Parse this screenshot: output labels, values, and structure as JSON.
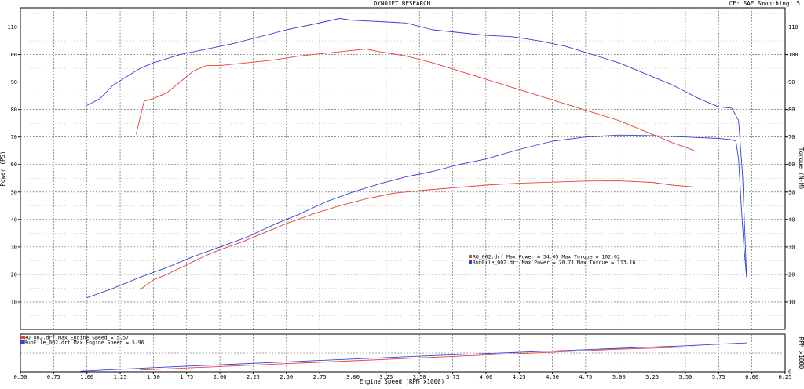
{
  "header": {
    "title": "DYNOJET RESEARCH",
    "settings": "CF: SAE  Smoothing: 5"
  },
  "chart_data": [
    {
      "type": "line",
      "title": "DYNOJET RESEARCH",
      "xlabel": "Engine Speed (RPM x1000)",
      "ylabel_left": "Power (PS)",
      "ylabel_right": "Torque (N-M)",
      "xlim": [
        0.5,
        6.25
      ],
      "ylim": [
        0,
        117
      ],
      "x_ticks": [
        "0.50",
        "0.75",
        "1.00",
        "1.25",
        "1.50",
        "1.75",
        "2.00",
        "2.25",
        "2.50",
        "2.75",
        "3.00",
        "3.25",
        "3.50",
        "3.75",
        "4.00",
        "4.25",
        "4.50",
        "4.75",
        "5.00",
        "5.25",
        "5.50",
        "5.75",
        "6.00",
        "6.25"
      ],
      "y_ticks": [
        "10",
        "20",
        "30",
        "40",
        "50",
        "60",
        "70",
        "80",
        "90",
        "100",
        "110"
      ],
      "grid": true,
      "legend_position": "center-right",
      "legend": [
        {
          "color": "#e8413a",
          "text": "RO_002.drf Max Power = 54.05      Max Torque = 102.02"
        },
        {
          "color": "#3340d8",
          "text": "RunFile_002.drf Max Power = 70.71      Max Torque = 113.16"
        }
      ],
      "series": [
        {
          "name": "RO_002.drf Power",
          "color": "#e8413a",
          "x": [
            1.4,
            1.5,
            1.6,
            1.75,
            1.9,
            2.0,
            2.15,
            2.3,
            2.5,
            2.7,
            2.9,
            3.1,
            3.3,
            3.5,
            3.75,
            4.0,
            4.25,
            4.5,
            4.75,
            5.0,
            5.25,
            5.4,
            5.57
          ],
          "y": [
            14.5,
            18,
            20,
            23.5,
            27,
            29,
            31.5,
            34.5,
            38.5,
            42,
            45,
            47.5,
            49.5,
            50.5,
            51.5,
            52.5,
            53.2,
            53.6,
            54,
            54.05,
            53.5,
            52.5,
            51.8
          ]
        },
        {
          "name": "RO_002.drf Torque",
          "color": "#e8413a",
          "x": [
            1.37,
            1.43,
            1.5,
            1.6,
            1.7,
            1.8,
            1.9,
            2.0,
            2.2,
            2.4,
            2.6,
            2.8,
            3.0,
            3.1,
            3.2,
            3.4,
            3.6,
            3.8,
            4.0,
            4.2,
            4.4,
            4.6,
            4.8,
            5.0,
            5.2,
            5.4,
            5.57
          ],
          "y": [
            71,
            83,
            84,
            86,
            90,
            94,
            96,
            96,
            97,
            98,
            99.5,
            100.5,
            101.5,
            102.02,
            101,
            99.5,
            97,
            94,
            91,
            88,
            85,
            82,
            79,
            76,
            72,
            68,
            65
          ]
        },
        {
          "name": "RunFile_002.drf Power",
          "color": "#3340d8",
          "x": [
            1.0,
            1.2,
            1.4,
            1.6,
            1.8,
            2.0,
            2.2,
            2.4,
            2.6,
            2.8,
            3.0,
            3.2,
            3.4,
            3.6,
            3.8,
            4.0,
            4.25,
            4.5,
            4.75,
            5.0,
            5.25,
            5.5,
            5.75,
            5.85,
            5.88,
            5.9,
            5.92,
            5.94,
            5.96
          ],
          "y": [
            11.5,
            15,
            19,
            22.5,
            26.5,
            30,
            33.5,
            38,
            42,
            46.5,
            50,
            53,
            55.5,
            57.5,
            60,
            62,
            65.5,
            68.5,
            70,
            70.71,
            70.5,
            70,
            69.5,
            69,
            68.5,
            62,
            45,
            30,
            19
          ]
        },
        {
          "name": "RunFile_002.drf Torque",
          "color": "#3340d8",
          "x": [
            1.0,
            1.1,
            1.2,
            1.3,
            1.4,
            1.5,
            1.7,
            1.9,
            2.1,
            2.3,
            2.5,
            2.7,
            2.9,
            3.0,
            3.2,
            3.4,
            3.6,
            3.8,
            4.0,
            4.2,
            4.4,
            4.6,
            4.8,
            5.0,
            5.2,
            5.4,
            5.6,
            5.75,
            5.85,
            5.9,
            5.93,
            5.96
          ],
          "y": [
            81.5,
            84,
            89,
            92,
            95,
            97,
            100,
            102,
            104,
            106.5,
            109,
            111,
            113.16,
            112.5,
            112,
            111.5,
            109,
            108,
            107,
            106.5,
            105,
            103,
            100,
            97,
            93,
            89,
            84,
            81,
            80.5,
            76,
            56,
            19
          ]
        }
      ]
    },
    {
      "type": "line",
      "ylabel_right": "RPM x1000",
      "ylim": [
        0,
        6.5
      ],
      "y_ticks": [
        "0"
      ],
      "legend": [
        {
          "color": "#e8413a",
          "text": "RO_002.drf Max Engine Speed = 5.57"
        },
        {
          "color": "#3340d8",
          "text": "RunFile_002.drf Max Engine Speed = 5.96"
        }
      ],
      "series": [
        {
          "name": "RO_002.drf Engine Speed",
          "color": "#e8413a",
          "x": [
            1.4,
            2.0,
            3.0,
            4.0,
            5.0,
            5.57
          ],
          "y": [
            0.3,
            0.9,
            1.9,
            2.9,
            3.9,
            4.3
          ]
        },
        {
          "name": "RunFile_002.drf Engine Speed",
          "color": "#3340d8",
          "x": [
            0.95,
            1.5,
            2.5,
            3.5,
            4.5,
            5.5,
            5.96
          ],
          "y": [
            0.1,
            0.7,
            1.7,
            2.7,
            3.6,
            4.5,
            5.0
          ]
        }
      ]
    }
  ]
}
